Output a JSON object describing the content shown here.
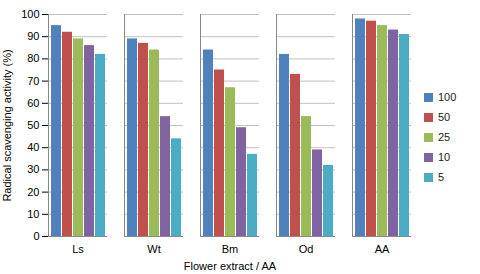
{
  "chart_data": {
    "type": "bar",
    "x_label": "Flower extract / AA",
    "y_label": "Radical scavenging activity (%)",
    "categories": [
      "Ls",
      "Wt",
      "Bm",
      "Od",
      "AA"
    ],
    "series": [
      {
        "name": "100",
        "color": "#4f81bd",
        "values": [
          95,
          89,
          84,
          82,
          98
        ]
      },
      {
        "name": "50",
        "color": "#c0504d",
        "values": [
          92,
          87,
          75,
          73,
          97
        ]
      },
      {
        "name": "25",
        "color": "#9bbb59",
        "values": [
          89,
          84,
          67,
          54,
          95
        ]
      },
      {
        "name": "10",
        "color": "#8064a2",
        "values": [
          86,
          54,
          49,
          39,
          93
        ]
      },
      {
        "name": "5",
        "color": "#4bacc6",
        "values": [
          82,
          44,
          37,
          32,
          91
        ]
      }
    ],
    "ylim": [
      0,
      100
    ],
    "yticks": [
      0,
      10,
      20,
      30,
      40,
      50,
      60,
      70,
      80,
      90,
      100
    ],
    "grid": true,
    "legend": "right"
  }
}
